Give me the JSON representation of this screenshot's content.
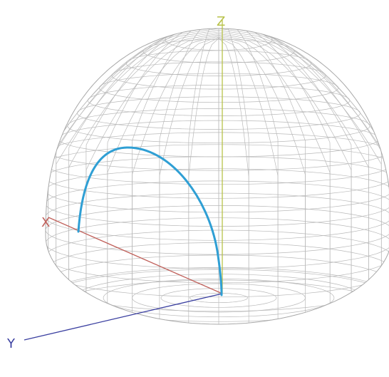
{
  "axes": {
    "x": {
      "label": "X",
      "color": "#c0605a"
    },
    "y": {
      "label": "Y",
      "color": "#3a3fa0"
    },
    "z": {
      "label": "Z",
      "color": "#b8c24a"
    }
  },
  "surface": {
    "shape": "upper-hemisphere-wireframe",
    "mesh_color": "#b9b9b9"
  },
  "path": {
    "color": "#2f9fd4"
  }
}
